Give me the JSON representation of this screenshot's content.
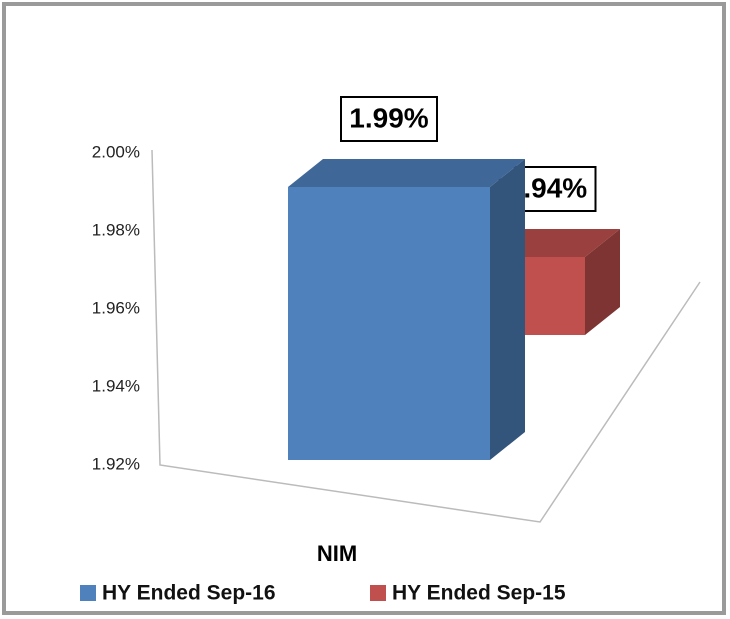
{
  "chart_data": {
    "type": "bar3d",
    "categories": [
      "NIM"
    ],
    "series": [
      {
        "name": "HY Ended Sep-16",
        "color": "#4f81bd",
        "values": [
          1.99
        ],
        "value_labels": [
          "1.99%"
        ]
      },
      {
        "name": "HY Ended Sep-15",
        "color": "#c0504d",
        "values": [
          1.94
        ],
        "value_labels": [
          "1.94%"
        ]
      }
    ],
    "ylim": [
      1.92,
      2.0
    ],
    "yticks": [
      {
        "value": 1.92,
        "label": "1.92%"
      },
      {
        "value": 1.94,
        "label": "1.94%"
      },
      {
        "value": 1.96,
        "label": "1.96%"
      },
      {
        "value": 1.98,
        "label": "1.98%"
      },
      {
        "value": 2.0,
        "label": "2.00%"
      }
    ],
    "legend": "bottom"
  }
}
